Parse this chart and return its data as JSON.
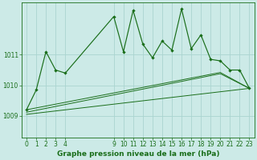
{
  "title": "Graphe pression niveau de la mer (hPa)",
  "bg_color": "#cceae7",
  "grid_color": "#aad4d0",
  "line_color": "#1a6e1a",
  "x_ticks": [
    0,
    1,
    2,
    3,
    4,
    9,
    10,
    11,
    12,
    13,
    14,
    15,
    16,
    17,
    18,
    19,
    20,
    21,
    22,
    23
  ],
  "yticks": [
    1009,
    1010,
    1011
  ],
  "ylim": [
    1008.3,
    1012.7
  ],
  "xlim": [
    -0.5,
    23.5
  ],
  "main_series": {
    "x": [
      0,
      1,
      2,
      3,
      4,
      9,
      10,
      11,
      12,
      13,
      14,
      15,
      16,
      17,
      18,
      19,
      20,
      21,
      22,
      23
    ],
    "y": [
      1009.2,
      1009.85,
      1011.1,
      1010.5,
      1010.4,
      1012.25,
      1011.1,
      1012.45,
      1011.35,
      1010.9,
      1011.45,
      1011.15,
      1012.5,
      1011.2,
      1011.65,
      1010.85,
      1010.8,
      1010.5,
      1010.5,
      1009.9
    ]
  },
  "min_series": {
    "x": [
      0,
      23
    ],
    "y": [
      1009.05,
      1009.9
    ]
  },
  "max_series": {
    "x": [
      0,
      20,
      23
    ],
    "y": [
      1009.2,
      1010.42,
      1009.9
    ]
  },
  "avg_series": {
    "x": [
      0,
      20,
      23
    ],
    "y": [
      1009.12,
      1010.38,
      1009.9
    ]
  },
  "title_fontsize": 6.5,
  "tick_fontsize": 5.5
}
